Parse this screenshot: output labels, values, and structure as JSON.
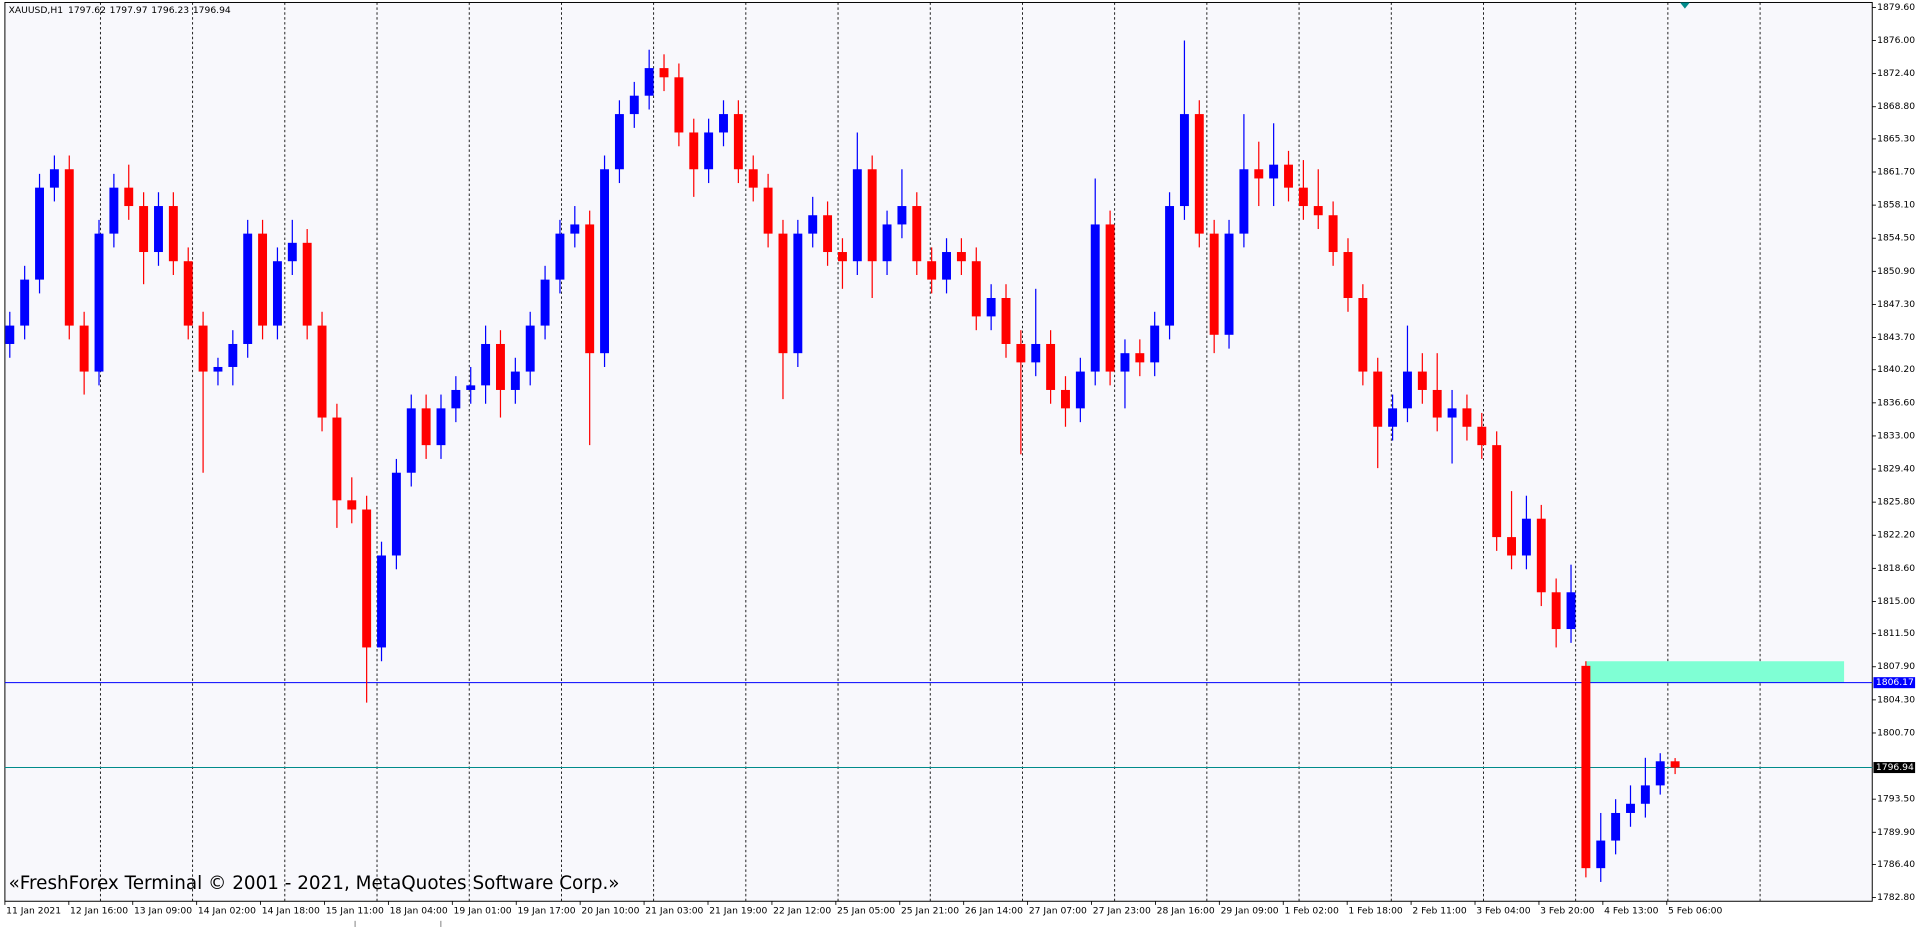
{
  "chart_data": {
    "type": "candlestick",
    "symbol": "XAUUSD,H1",
    "watermark": "«FreshForex Terminal © 2001 - 2021, MetaQuotes Software Corp.»",
    "up_color": "#0000ff",
    "down_color": "#ff0000",
    "categories": [
      "11 Jan 2021",
      "12 Jan 16:00",
      "13 Jan 09:00",
      "14 Jan 02:00",
      "14 Jan 18:00",
      "15 Jan 11:00",
      "18 Jan 04:00",
      "19 Jan 01:00",
      "19 Jan 17:00",
      "20 Jan 10:00",
      "21 Jan 03:00",
      "21 Jan 19:00",
      "22 Jan 12:00",
      "25 Jan 05:00",
      "25 Jan 21:00",
      "26 Jan 14:00",
      "27 Jan 07:00",
      "27 Jan 23:00",
      "28 Jan 16:00",
      "29 Jan 09:00",
      "1 Feb 02:00",
      "1 Feb 18:00",
      "2 Feb 11:00",
      "3 Feb 04:00",
      "3 Feb 20:00",
      "4 Feb 13:00",
      "5 Feb 06:00"
    ],
    "candles": [
      [
        1843,
        1846.5,
        1841.5,
        1845
      ],
      [
        1845,
        1851.5,
        1843.5,
        1850
      ],
      [
        1850,
        1861.5,
        1848.5,
        1860
      ],
      [
        1860,
        1863.5,
        1858.5,
        1862
      ],
      [
        1862,
        1863.5,
        1843.5,
        1845
      ],
      [
        1845,
        1846.5,
        1837.5,
        1840
      ],
      [
        1840,
        1856.5,
        1838.5,
        1855
      ],
      [
        1855,
        1861.5,
        1853.5,
        1860
      ],
      [
        1860,
        1862.5,
        1856.5,
        1858
      ],
      [
        1858,
        1859.5,
        1849.5,
        1853
      ],
      [
        1853,
        1859.5,
        1851.5,
        1858
      ],
      [
        1858,
        1859.5,
        1850.5,
        1852
      ],
      [
        1852,
        1853.5,
        1843.5,
        1845
      ],
      [
        1845,
        1846.5,
        1829,
        1840
      ],
      [
        1840,
        1841.5,
        1838.5,
        1840.5
      ],
      [
        1840.5,
        1844.5,
        1838.5,
        1843
      ],
      [
        1843,
        1856.5,
        1841.5,
        1855
      ],
      [
        1855,
        1856.5,
        1843.5,
        1845
      ],
      [
        1845,
        1853.5,
        1843.5,
        1852
      ],
      [
        1852,
        1856.5,
        1850.5,
        1854
      ],
      [
        1854,
        1855.5,
        1843.5,
        1845
      ],
      [
        1845,
        1846.5,
        1833.5,
        1835
      ],
      [
        1835,
        1836.5,
        1823,
        1826
      ],
      [
        1826,
        1828.5,
        1823.5,
        1825
      ],
      [
        1825,
        1826.5,
        1804,
        1810
      ],
      [
        1810,
        1821.5,
        1808.5,
        1820
      ],
      [
        1820,
        1830.5,
        1818.5,
        1829
      ],
      [
        1829,
        1837.5,
        1827.5,
        1836
      ],
      [
        1836,
        1837.5,
        1830.5,
        1832
      ],
      [
        1832,
        1837.5,
        1830.5,
        1836
      ],
      [
        1836,
        1839.5,
        1834.5,
        1838
      ],
      [
        1838,
        1840.5,
        1836.5,
        1838.5
      ],
      [
        1838.5,
        1845,
        1836.5,
        1843
      ],
      [
        1843,
        1844.5,
        1835,
        1838
      ],
      [
        1838,
        1841.5,
        1836.5,
        1840
      ],
      [
        1840,
        1846.5,
        1838.5,
        1845
      ],
      [
        1845,
        1851.5,
        1843.5,
        1850
      ],
      [
        1850,
        1856.5,
        1848.5,
        1855
      ],
      [
        1855,
        1858,
        1853.5,
        1856
      ],
      [
        1856,
        1857.5,
        1832,
        1842
      ],
      [
        1842,
        1863.5,
        1840.5,
        1862
      ],
      [
        1862,
        1869.5,
        1860.5,
        1868
      ],
      [
        1868,
        1871.5,
        1866.5,
        1870
      ],
      [
        1870,
        1875,
        1868.5,
        1873
      ],
      [
        1873,
        1874.5,
        1870.5,
        1872
      ],
      [
        1872,
        1873.5,
        1864.5,
        1866
      ],
      [
        1866,
        1867.5,
        1859,
        1862
      ],
      [
        1862,
        1867.5,
        1860.5,
        1866
      ],
      [
        1866,
        1869.5,
        1864.5,
        1868
      ],
      [
        1868,
        1869.5,
        1860.5,
        1862
      ],
      [
        1862,
        1863.5,
        1858.5,
        1860
      ],
      [
        1860,
        1861.5,
        1853.5,
        1855
      ],
      [
        1855,
        1856.5,
        1837,
        1842
      ],
      [
        1842,
        1856.5,
        1840.5,
        1855
      ],
      [
        1855,
        1859,
        1853.5,
        1857
      ],
      [
        1857,
        1858.5,
        1851.5,
        1853
      ],
      [
        1853,
        1854.5,
        1849,
        1852
      ],
      [
        1852,
        1866,
        1850.5,
        1862
      ],
      [
        1862,
        1863.5,
        1848,
        1852
      ],
      [
        1852,
        1857.5,
        1850.5,
        1856
      ],
      [
        1856,
        1862,
        1854.5,
        1858
      ],
      [
        1858,
        1859.5,
        1850.5,
        1852
      ],
      [
        1852,
        1853.5,
        1848.5,
        1850
      ],
      [
        1850,
        1854.5,
        1848.5,
        1853
      ],
      [
        1853,
        1854.5,
        1850.5,
        1852
      ],
      [
        1852,
        1853.5,
        1844.5,
        1846
      ],
      [
        1846,
        1849.5,
        1844.5,
        1848
      ],
      [
        1848,
        1849.5,
        1841.5,
        1843
      ],
      [
        1843,
        1844.5,
        1831,
        1841
      ],
      [
        1841,
        1849,
        1839.5,
        1843
      ],
      [
        1843,
        1844.5,
        1836.5,
        1838
      ],
      [
        1838,
        1839.5,
        1834,
        1836
      ],
      [
        1836,
        1841.5,
        1834.5,
        1840
      ],
      [
        1840,
        1861,
        1838.5,
        1856
      ],
      [
        1856,
        1857.5,
        1838.5,
        1840
      ],
      [
        1840,
        1843.5,
        1836,
        1842
      ],
      [
        1842,
        1843.5,
        1839.5,
        1841
      ],
      [
        1841,
        1846.5,
        1839.5,
        1845
      ],
      [
        1845,
        1859.5,
        1843.5,
        1858
      ],
      [
        1858,
        1876,
        1856.5,
        1868
      ],
      [
        1868,
        1869.5,
        1853.5,
        1855
      ],
      [
        1855,
        1856.5,
        1842,
        1844
      ],
      [
        1844,
        1856.5,
        1842.5,
        1855
      ],
      [
        1855,
        1868,
        1853.5,
        1862
      ],
      [
        1862,
        1865,
        1858,
        1861
      ],
      [
        1861,
        1867,
        1858,
        1862.5
      ],
      [
        1862.5,
        1864,
        1858.5,
        1860
      ],
      [
        1860,
        1863,
        1856.5,
        1858
      ],
      [
        1858,
        1862,
        1855.5,
        1857
      ],
      [
        1857,
        1858.5,
        1851.5,
        1853
      ],
      [
        1853,
        1854.5,
        1846.5,
        1848
      ],
      [
        1848,
        1849.5,
        1838.5,
        1840
      ],
      [
        1840,
        1841.5,
        1829.5,
        1834
      ],
      [
        1834,
        1837.5,
        1832.5,
        1836
      ],
      [
        1836,
        1845,
        1834.5,
        1840
      ],
      [
        1840,
        1842,
        1836.5,
        1838
      ],
      [
        1838,
        1842,
        1833.5,
        1835
      ],
      [
        1835,
        1838,
        1830,
        1836
      ],
      [
        1836,
        1837.5,
        1832.5,
        1834
      ],
      [
        1834,
        1835.5,
        1830.5,
        1832
      ],
      [
        1832,
        1833.5,
        1820.5,
        1822
      ],
      [
        1822,
        1827,
        1818.5,
        1820
      ],
      [
        1820,
        1826.5,
        1818.5,
        1824
      ],
      [
        1824,
        1825.5,
        1814.5,
        1816
      ],
      [
        1816,
        1817.5,
        1810,
        1812
      ],
      [
        1812,
        1819,
        1810.5,
        1816
      ],
      [
        1808,
        1808.5,
        1785,
        1786
      ],
      [
        1786,
        1792,
        1784.5,
        1789
      ],
      [
        1789,
        1793.5,
        1787.5,
        1792
      ],
      [
        1792,
        1795,
        1790.5,
        1793
      ],
      [
        1793,
        1798,
        1791.5,
        1795
      ],
      [
        1795,
        1798.5,
        1794,
        1797.62
      ],
      [
        1797.62,
        1797.97,
        1796.23,
        1796.94
      ]
    ],
    "ylim": [
      1782.4,
      1879.87
    ],
    "yticks": [
      {
        "value": 1879.6,
        "label": "1879.60"
      },
      {
        "value": 1876,
        "label": "1876.00"
      },
      {
        "value": 1872.4,
        "label": "1872.40"
      },
      {
        "value": 1868.8,
        "label": "1868.80"
      },
      {
        "value": 1865.3,
        "label": "1865.30"
      },
      {
        "value": 1861.7,
        "label": "1861.70"
      },
      {
        "value": 1858.1,
        "label": "1858.10"
      },
      {
        "value": 1854.5,
        "label": "1854.50"
      },
      {
        "value": 1850.9,
        "label": "1850.90"
      },
      {
        "value": 1847.3,
        "label": "1847.30"
      },
      {
        "value": 1843.7,
        "label": "1843.70"
      },
      {
        "value": 1840.2,
        "label": "1840.20"
      },
      {
        "value": 1836.6,
        "label": "1836.60"
      },
      {
        "value": 1833,
        "label": "1833.00"
      },
      {
        "value": 1829.4,
        "label": "1829.40"
      },
      {
        "value": 1825.8,
        "label": "1825.80"
      },
      {
        "value": 1822.2,
        "label": "1822.20"
      },
      {
        "value": 1818.6,
        "label": "1818.60"
      },
      {
        "value": 1815,
        "label": "1815.00"
      },
      {
        "value": 1811.5,
        "label": "1811.50"
      },
      {
        "value": 1807.9,
        "label": "1807.90"
      },
      {
        "value": 1804.3,
        "label": "1804.30"
      },
      {
        "value": 1800.7,
        "label": "1800.70"
      },
      {
        "value": 1793.5,
        "label": "1793.50"
      },
      {
        "value": 1789.9,
        "label": "1789.90"
      },
      {
        "value": 1786.4,
        "label": "1786.40"
      },
      {
        "value": 1782.8,
        "label": "1782.80"
      }
    ],
    "price_line": {
      "value": 1806.17,
      "color": "#0000ff"
    },
    "current_line_color": "#008b8b",
    "zone": {
      "ylim": [
        1806.17,
        1808.5
      ],
      "color": "#7fffd4"
    }
  }
}
